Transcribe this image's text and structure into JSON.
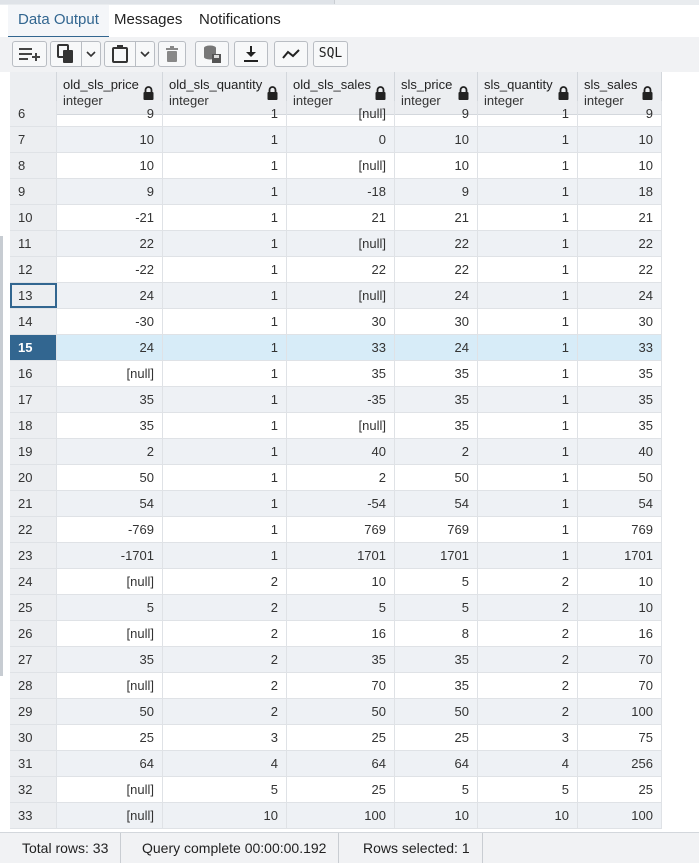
{
  "tabs": [
    {
      "label": "Data Output",
      "active": true
    },
    {
      "label": "Messages",
      "active": false
    },
    {
      "label": "Notifications",
      "active": false
    }
  ],
  "toolbar": {
    "buttons": [
      "add-row-icon",
      "copy-icon",
      "paste-icon",
      "delete-icon",
      "save-data-icon",
      "download-icon",
      "graph-icon"
    ],
    "sql_label": "SQL"
  },
  "columns": [
    {
      "name": "old_sls_price",
      "type": "integer"
    },
    {
      "name": "old_sls_quantity",
      "type": "integer"
    },
    {
      "name": "old_sls_sales",
      "type": "integer"
    },
    {
      "name": "sls_price",
      "type": "integer"
    },
    {
      "name": "sls_quantity",
      "type": "integer"
    },
    {
      "name": "sls_sales",
      "type": "integer"
    }
  ],
  "rows": [
    {
      "n": "6",
      "v": [
        "9",
        "1",
        "[null]",
        "9",
        "1",
        "9"
      ]
    },
    {
      "n": "7",
      "v": [
        "10",
        "1",
        "0",
        "10",
        "1",
        "10"
      ]
    },
    {
      "n": "8",
      "v": [
        "10",
        "1",
        "[null]",
        "10",
        "1",
        "10"
      ]
    },
    {
      "n": "9",
      "v": [
        "9",
        "1",
        "-18",
        "9",
        "1",
        "18"
      ]
    },
    {
      "n": "10",
      "v": [
        "-21",
        "1",
        "21",
        "21",
        "1",
        "21"
      ]
    },
    {
      "n": "11",
      "v": [
        "22",
        "1",
        "[null]",
        "22",
        "1",
        "22"
      ]
    },
    {
      "n": "12",
      "v": [
        "-22",
        "1",
        "22",
        "22",
        "1",
        "22"
      ]
    },
    {
      "n": "13",
      "v": [
        "24",
        "1",
        "[null]",
        "24",
        "1",
        "24"
      ]
    },
    {
      "n": "14",
      "v": [
        "-30",
        "1",
        "30",
        "30",
        "1",
        "30"
      ]
    },
    {
      "n": "15",
      "v": [
        "24",
        "1",
        "33",
        "24",
        "1",
        "33"
      ]
    },
    {
      "n": "16",
      "v": [
        "[null]",
        "1",
        "35",
        "35",
        "1",
        "35"
      ]
    },
    {
      "n": "17",
      "v": [
        "35",
        "1",
        "-35",
        "35",
        "1",
        "35"
      ]
    },
    {
      "n": "18",
      "v": [
        "35",
        "1",
        "[null]",
        "35",
        "1",
        "35"
      ]
    },
    {
      "n": "19",
      "v": [
        "2",
        "1",
        "40",
        "2",
        "1",
        "40"
      ]
    },
    {
      "n": "20",
      "v": [
        "50",
        "1",
        "2",
        "50",
        "1",
        "50"
      ]
    },
    {
      "n": "21",
      "v": [
        "54",
        "1",
        "-54",
        "54",
        "1",
        "54"
      ]
    },
    {
      "n": "22",
      "v": [
        "-769",
        "1",
        "769",
        "769",
        "1",
        "769"
      ]
    },
    {
      "n": "23",
      "v": [
        "-1701",
        "1",
        "1701",
        "1701",
        "1",
        "1701"
      ]
    },
    {
      "n": "24",
      "v": [
        "[null]",
        "2",
        "10",
        "5",
        "2",
        "10"
      ]
    },
    {
      "n": "25",
      "v": [
        "5",
        "2",
        "5",
        "5",
        "2",
        "10"
      ]
    },
    {
      "n": "26",
      "v": [
        "[null]",
        "2",
        "16",
        "8",
        "2",
        "16"
      ]
    },
    {
      "n": "27",
      "v": [
        "35",
        "2",
        "35",
        "35",
        "2",
        "70"
      ]
    },
    {
      "n": "28",
      "v": [
        "[null]",
        "2",
        "70",
        "35",
        "2",
        "70"
      ]
    },
    {
      "n": "29",
      "v": [
        "50",
        "2",
        "50",
        "50",
        "2",
        "100"
      ]
    },
    {
      "n": "30",
      "v": [
        "25",
        "3",
        "25",
        "25",
        "3",
        "75"
      ]
    },
    {
      "n": "31",
      "v": [
        "64",
        "4",
        "64",
        "64",
        "4",
        "256"
      ]
    },
    {
      "n": "32",
      "v": [
        "[null]",
        "5",
        "25",
        "5",
        "5",
        "25"
      ]
    },
    {
      "n": "33",
      "v": [
        "[null]",
        "10",
        "100",
        "10",
        "10",
        "100"
      ]
    }
  ],
  "selected_row": "15",
  "focused_row": "13",
  "status": {
    "total_rows": "Total rows: 33",
    "query": "Query complete 00:00:00.192",
    "selected": "Rows selected: 1"
  },
  "colors": {
    "accent": "#326690",
    "selected_row_bg": "#d7ecf8"
  }
}
